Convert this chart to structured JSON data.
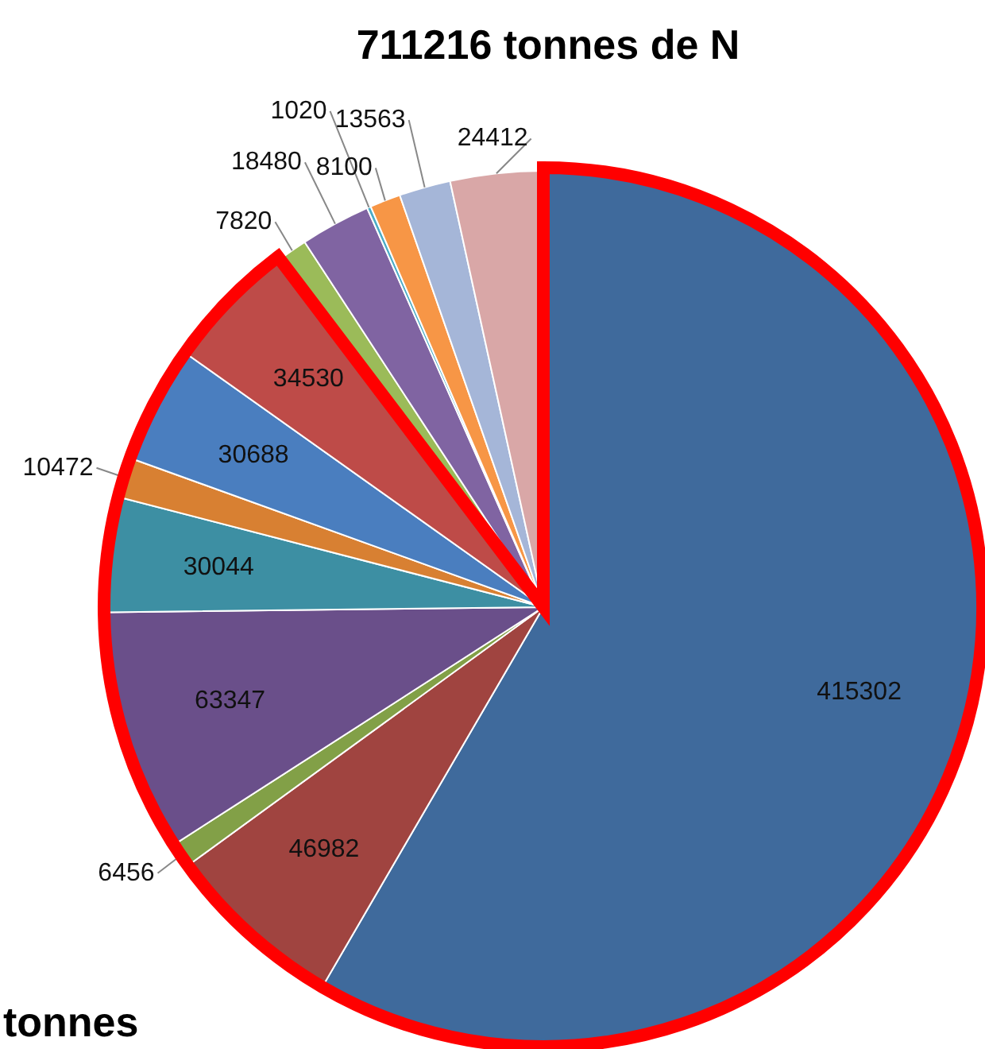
{
  "chart_data": {
    "type": "pie",
    "title": "711216 tonnes de N",
    "categories": [
      null,
      null,
      null,
      null,
      null,
      null,
      null,
      null,
      null,
      null,
      null,
      null,
      null,
      null
    ],
    "values": [
      415302,
      46982,
      6456,
      63347,
      30044,
      10472,
      30688,
      34530,
      7820,
      18480,
      1020,
      8100,
      13563,
      24412
    ],
    "colors": [
      "#3f6a9c",
      "#a04440",
      "#82a047",
      "#6a4f8a",
      "#3d8fa3",
      "#d88032",
      "#4a7ebf",
      "#be4b48",
      "#9bbb59",
      "#8064a2",
      "#4bacc6",
      "#f79646",
      "#a5b6d8",
      "#d9a7a7"
    ],
    "data_labels": true,
    "legend": false,
    "annotations": [
      "tonnes"
    ]
  }
}
